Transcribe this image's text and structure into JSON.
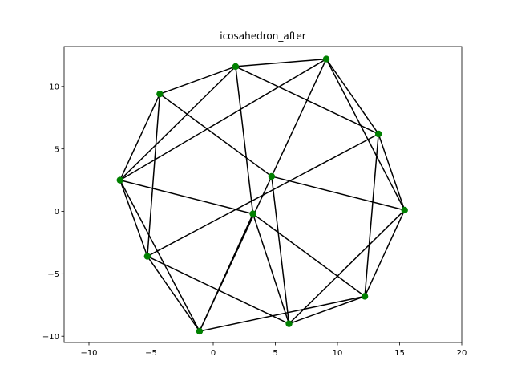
{
  "chart_data": {
    "type": "scatter",
    "title": "icosahedron_after",
    "xlabel": "",
    "ylabel": "",
    "xlim": [
      -12.0,
      20.0
    ],
    "ylim": [
      -10.5,
      13.2
    ],
    "xticks": [
      -10,
      -5,
      0,
      5,
      10,
      15,
      20
    ],
    "yticks": [
      -10,
      -5,
      0,
      5,
      10
    ],
    "grid": false,
    "point_color": "#008000",
    "line_color": "#000000",
    "points": [
      {
        "x": 9.1,
        "y": 12.2
      },
      {
        "x": 1.8,
        "y": 11.6
      },
      {
        "x": -4.3,
        "y": 9.4
      },
      {
        "x": 13.3,
        "y": 6.2
      },
      {
        "x": 4.7,
        "y": 2.8
      },
      {
        "x": -7.5,
        "y": 2.5
      },
      {
        "x": 15.4,
        "y": 0.1
      },
      {
        "x": 3.2,
        "y": -0.2
      },
      {
        "x": -5.3,
        "y": -3.6
      },
      {
        "x": 12.2,
        "y": -6.8
      },
      {
        "x": 6.1,
        "y": -9.0
      },
      {
        "x": -1.1,
        "y": -9.6
      }
    ],
    "edges": [
      [
        0,
        1
      ],
      [
        0,
        3
      ],
      [
        0,
        4
      ],
      [
        0,
        5
      ],
      [
        0,
        6
      ],
      [
        1,
        2
      ],
      [
        1,
        3
      ],
      [
        1,
        7
      ],
      [
        1,
        5
      ],
      [
        2,
        5
      ],
      [
        2,
        4
      ],
      [
        2,
        8
      ],
      [
        3,
        6
      ],
      [
        3,
        8
      ],
      [
        3,
        9
      ],
      [
        4,
        6
      ],
      [
        4,
        10
      ],
      [
        4,
        11
      ],
      [
        5,
        8
      ],
      [
        5,
        11
      ],
      [
        5,
        7
      ],
      [
        6,
        9
      ],
      [
        6,
        10
      ],
      [
        7,
        9
      ],
      [
        7,
        10
      ],
      [
        7,
        11
      ],
      [
        8,
        11
      ],
      [
        8,
        10
      ],
      [
        9,
        10
      ],
      [
        9,
        11
      ]
    ]
  }
}
